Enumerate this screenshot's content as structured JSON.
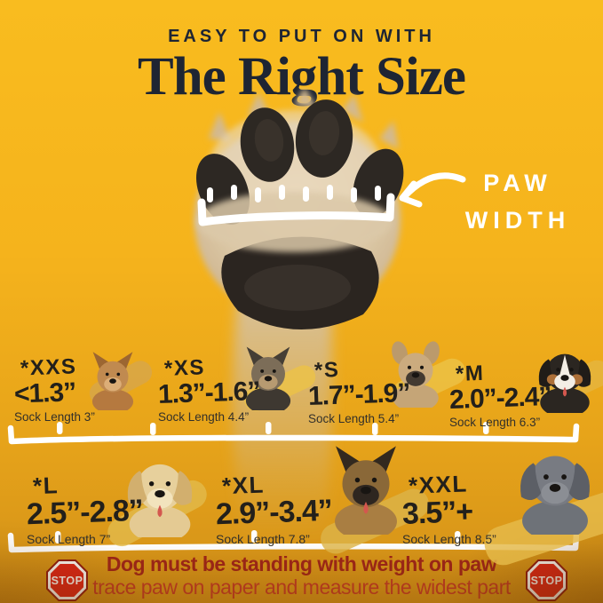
{
  "header": {
    "kicker": "EASY TO PUT ON WITH",
    "title": "The Right Size"
  },
  "paw": {
    "label_line1": "PAW",
    "label_line2": "WIDTH"
  },
  "sizes": [
    {
      "label": "*XXS",
      "range": "<1.3”",
      "sock": "Sock Length 3”",
      "breed": "chihuahua"
    },
    {
      "label": "*XS",
      "range": "1.3”-1.6”",
      "sock": "Sock Length 4.4”",
      "breed": "yorkshire-terrier-puppy"
    },
    {
      "label": "*S",
      "range": "1.7”-1.9”",
      "sock": "Sock Length 5.4”",
      "breed": "french-bulldog"
    },
    {
      "label": "*M",
      "range": "2.0”-2.4”",
      "sock": "Sock Length 6.3”",
      "breed": "australian-shepherd"
    },
    {
      "label": "*L",
      "range": "2.5”-2.8”",
      "sock": "Sock Length 7”",
      "breed": "golden-retriever"
    },
    {
      "label": "*XL",
      "range": "2.9”-3.4”",
      "sock": "Sock Length 7.8”",
      "breed": "german-shepherd"
    },
    {
      "label": "*XXL",
      "range": "3.5”+",
      "sock": "Sock Length 8.5”",
      "breed": "great-dane"
    }
  ],
  "footer": {
    "stop": "STOP",
    "line1": "Dog must be standing with weight on paw",
    "line2": "trace paw on paper and measure the widest part"
  },
  "colors": {
    "bg_top": "#f9bc1f",
    "bg_bottom": "#d29018",
    "title": "#1e2533",
    "warn1": "#9e2418",
    "warn2": "#c13a24",
    "stop_red": "#e02317"
  },
  "dog_palette": {
    "chihuahua": {
      "ears": "up",
      "body": "#b5793f",
      "head": "#c08a50",
      "ear": "#9c6631",
      "muzzle": "#dcae77"
    },
    "yorkshire-terrier-puppy": {
      "ears": "up",
      "body": "#3e3831",
      "head": "#7c6d58",
      "ear": "#453e35",
      "muzzle": "#b79a71"
    },
    "french-bulldog": {
      "ears": "bat",
      "body": "#c5a577",
      "head": "#cbab7e",
      "ear": "#bb9a6c",
      "muzzle": "#433a31"
    },
    "australian-shepherd": {
      "ears": "floppy",
      "body": "#2b2621",
      "head": "#2b2621",
      "ear": "#201c18",
      "muzzle": "#f3eee5",
      "blaze": "#f3eee5",
      "cheeks": "#ad7038",
      "tongue": true
    },
    "golden-retriever": {
      "ears": "floppy",
      "body": "#e4ca93",
      "head": "#e7d09c",
      "ear": "#d2af6e",
      "muzzle": "#f2e3bd",
      "tongue": true
    },
    "german-shepherd": {
      "ears": "up",
      "body": "#a97e42",
      "head": "#8a6838",
      "ear": "#32291f",
      "muzzle": "#2e2620",
      "tongue": true
    },
    "great-dane": {
      "ears": "floppy",
      "body": "#6e7278",
      "head": "#787b82",
      "ear": "#5c5f66",
      "muzzle": "#8b8e94"
    }
  }
}
